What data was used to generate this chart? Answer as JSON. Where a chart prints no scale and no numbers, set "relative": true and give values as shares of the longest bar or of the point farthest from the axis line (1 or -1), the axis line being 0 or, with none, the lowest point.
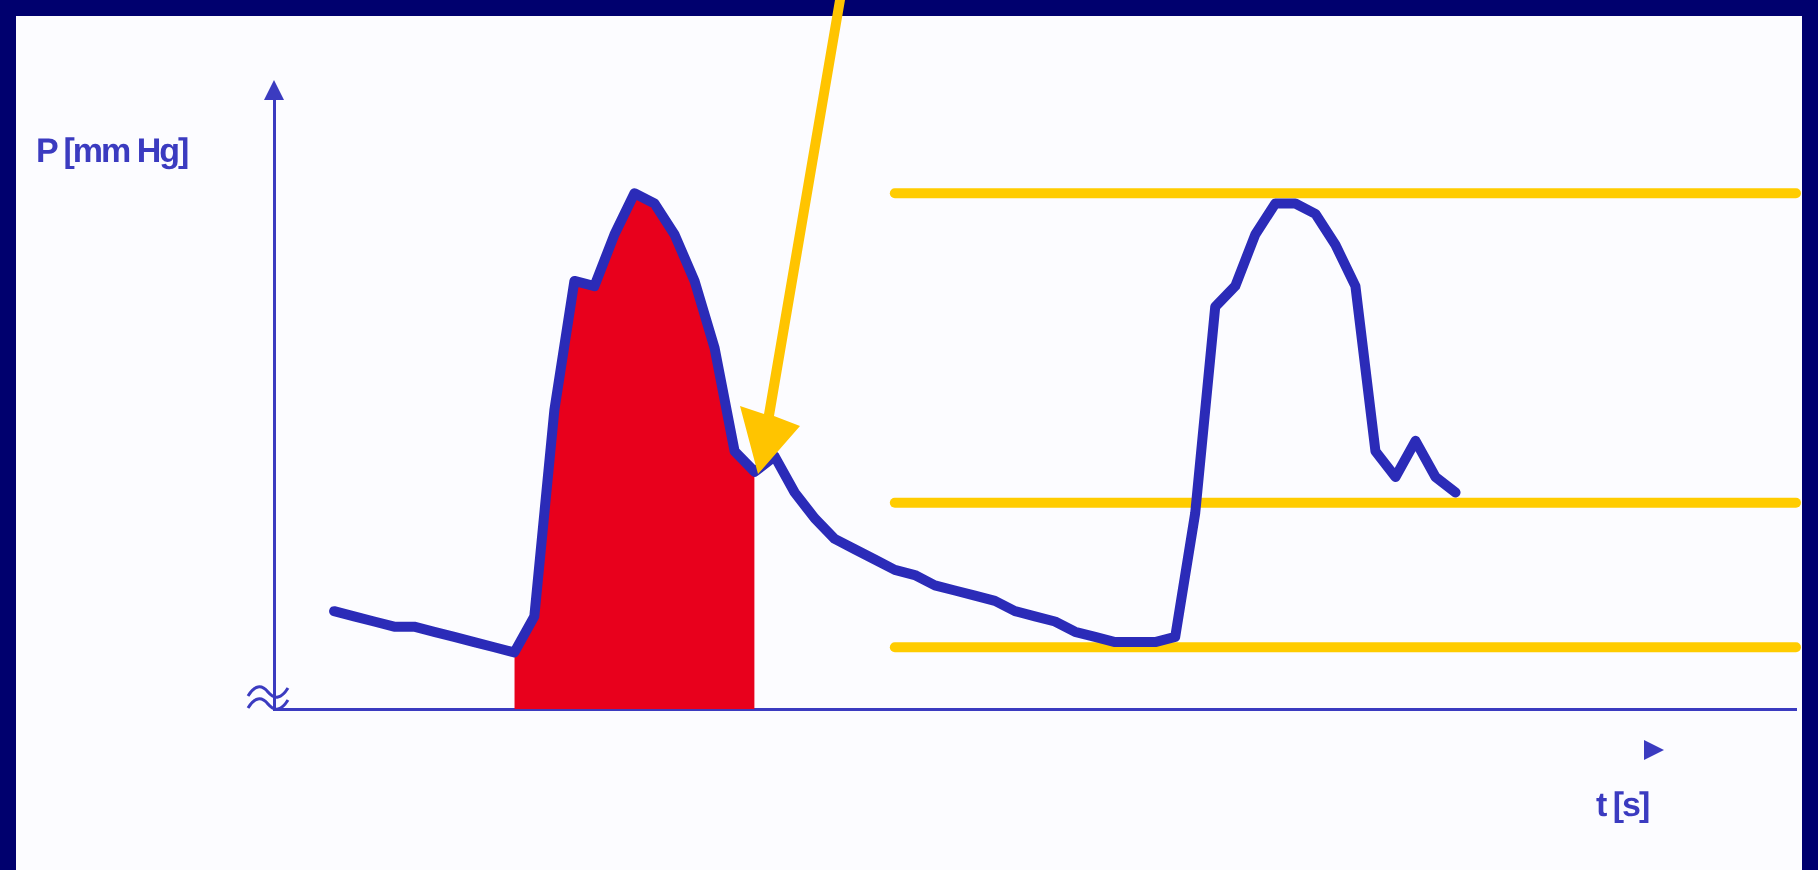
{
  "chart_data": {
    "type": "line",
    "relative": true,
    "xlabel": "t [s]",
    "ylabel": "P [mm Hg]",
    "marker": "none",
    "line_style": "solid",
    "categories": [
      null,
      null,
      null,
      null,
      null,
      null,
      null,
      null,
      null,
      null,
      null,
      null,
      null,
      null,
      null,
      null,
      null,
      null,
      null,
      null,
      null,
      null,
      null,
      null,
      null,
      null,
      null,
      null,
      null,
      null,
      null,
      null,
      null,
      null,
      null,
      null,
      null,
      null,
      null,
      null,
      null,
      null,
      null,
      null,
      null,
      null,
      null,
      null,
      null,
      null,
      null,
      null,
      null,
      null,
      null,
      null,
      null,
      null,
      null,
      null,
      null,
      null,
      null,
      null,
      null,
      null,
      null,
      null,
      null,
      null,
      null,
      null,
      null,
      null,
      null,
      null,
      null
    ],
    "series": [
      {
        "type": "line",
        "color": "#2b2bb8",
        "values": [
          null,
          null,
          null,
          0.19,
          0.18,
          0.17,
          0.16,
          0.16,
          0.15,
          0.14,
          0.13,
          0.12,
          0.11,
          0.18,
          0.58,
          0.83,
          0.82,
          0.92,
          1,
          0.98,
          0.92,
          0.83,
          0.7,
          0.5,
          0.46,
          0.49,
          0.42,
          0.37,
          0.33,
          0.31,
          0.29,
          0.27,
          0.26,
          0.24,
          0.23,
          0.22,
          0.21,
          0.19,
          0.18,
          0.17,
          0.15,
          0.14,
          0.13,
          0.13,
          0.13,
          0.14,
          0.38,
          0.78,
          0.82,
          0.92,
          0.98,
          0.98,
          0.96,
          0.9,
          0.82,
          0.5,
          0.45,
          0.52,
          0.45,
          0.42,
          null,
          null,
          null,
          null,
          null,
          null,
          null,
          null,
          null,
          null,
          null,
          null,
          null,
          null,
          null,
          null,
          null
        ]
      },
      {
        "type": "area",
        "color": "#e8001c",
        "values": [
          null,
          null,
          null,
          null,
          null,
          null,
          null,
          null,
          null,
          null,
          null,
          null,
          0.11,
          0.18,
          0.58,
          0.83,
          0.82,
          0.92,
          1,
          0.98,
          0.92,
          0.83,
          0.7,
          0.5,
          0.46,
          null,
          null,
          null,
          null,
          null,
          null,
          null,
          null,
          null,
          null,
          null,
          null,
          null,
          null,
          null,
          null,
          null,
          null,
          null,
          null,
          null,
          null,
          null,
          null,
          null,
          null,
          null,
          null,
          null,
          null,
          null,
          null,
          null,
          null,
          null,
          null,
          null,
          null,
          null,
          null,
          null,
          null,
          null,
          null,
          null,
          null,
          null,
          null,
          null,
          null,
          null,
          null
        ]
      },
      {
        "type": "line",
        "color": "#ffcc00",
        "values": [
          null,
          null,
          null,
          null,
          null,
          null,
          null,
          null,
          null,
          null,
          null,
          null,
          null,
          null,
          null,
          null,
          null,
          null,
          null,
          null,
          null,
          null,
          null,
          null,
          null,
          null,
          null,
          null,
          null,
          null,
          null,
          1,
          1,
          1,
          1,
          1,
          1,
          1,
          1,
          1,
          1,
          1,
          1,
          1,
          1,
          1,
          1,
          1,
          1,
          1,
          1,
          1,
          1,
          1,
          1,
          1,
          1,
          1,
          1,
          1,
          1,
          1,
          1,
          1,
          1,
          1,
          1,
          1,
          1,
          1,
          1,
          1,
          1,
          1,
          1,
          1,
          1
        ]
      },
      {
        "type": "line",
        "color": "#ffcc00",
        "values": [
          null,
          null,
          null,
          null,
          null,
          null,
          null,
          null,
          null,
          null,
          null,
          null,
          null,
          null,
          null,
          null,
          null,
          null,
          null,
          null,
          null,
          null,
          null,
          null,
          null,
          null,
          null,
          null,
          null,
          null,
          null,
          0.4,
          0.4,
          0.4,
          0.4,
          0.4,
          0.4,
          0.4,
          0.4,
          0.4,
          0.4,
          0.4,
          0.4,
          0.4,
          0.4,
          0.4,
          0.4,
          0.4,
          0.4,
          0.4,
          0.4,
          0.4,
          0.4,
          0.4,
          0.4,
          0.4,
          0.4,
          0.4,
          0.4,
          0.4,
          0.4,
          0.4,
          0.4,
          0.4,
          0.4,
          0.4,
          0.4,
          0.4,
          0.4,
          0.4,
          0.4,
          0.4,
          0.4,
          0.4,
          0.4,
          0.4,
          0.4
        ]
      },
      {
        "type": "line",
        "color": "#ffcc00",
        "values": [
          null,
          null,
          null,
          null,
          null,
          null,
          null,
          null,
          null,
          null,
          null,
          null,
          null,
          null,
          null,
          null,
          null,
          null,
          null,
          null,
          null,
          null,
          null,
          null,
          null,
          null,
          null,
          null,
          null,
          null,
          null,
          0.12,
          0.12,
          0.12,
          0.12,
          0.12,
          0.12,
          0.12,
          0.12,
          0.12,
          0.12,
          0.12,
          0.12,
          0.12,
          0.12,
          0.12,
          0.12,
          0.12,
          0.12,
          0.12,
          0.12,
          0.12,
          0.12,
          0.12,
          0.12,
          0.12,
          0.12,
          0.12,
          0.12,
          0.12,
          0.12,
          0.12,
          0.12,
          0.12,
          0.12,
          0.12,
          0.12,
          0.12,
          0.12,
          0.12,
          0.12,
          0.12,
          0.12,
          0.12,
          0.12,
          0.12,
          0.12
        ]
      }
    ]
  }
}
